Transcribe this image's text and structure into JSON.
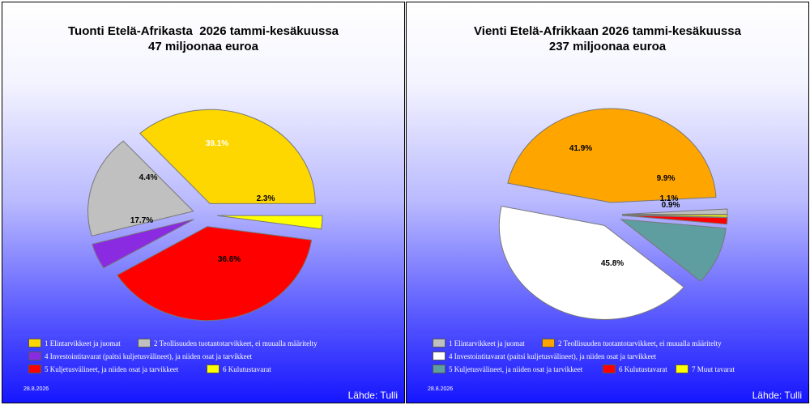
{
  "chart_data": [
    {
      "type": "pie",
      "title_lines": [
        "Tuonti Etelä-Afrikasta  2026 tammi-kesäkuussa",
        "47 miljoonaa euroa"
      ],
      "date": "28.8.2026",
      "source": "Lähde: Tulli",
      "slices": [
        {
          "name": "1 Elintarvikkeet ja juomat",
          "value": 36.6,
          "label": "36.6%",
          "color": "#ffd700"
        },
        {
          "name": "2 Teollisuuden tuotantotarvikkeet, ei muualla määritelty",
          "value": 17.7,
          "label": "17.7%",
          "color": "#c0c0c0"
        },
        {
          "name": "4 Investointitavarat (paitsi kuljetusvälineet), ja niiden osat ja tarvikkeet",
          "value": 4.4,
          "label": "4.4%",
          "color": "#8a2be2"
        },
        {
          "name": "5 Kuljetusvälineet, ja niiden osat ja tarvikkeet",
          "value": 39.1,
          "label": "39.1%",
          "color": "#ff0000"
        },
        {
          "name": "6 Kulutustavarat",
          "value": 2.3,
          "label": "2.3%",
          "color": "#ffff00"
        }
      ],
      "legend_rows": [
        [
          0,
          1
        ],
        [
          2
        ],
        [
          3,
          4
        ]
      ]
    },
    {
      "type": "pie",
      "title_lines": [
        "Vienti Etelä-Afrikkaan 2026 tammi-kesäkuussa",
        "237 miljoonaa euroa"
      ],
      "date": "28.8.2026",
      "source": "Lähde: Tulli",
      "slices": [
        {
          "name": "1 Elintarvikkeet ja juomat",
          "value": 0.9,
          "label": "0.9%",
          "color": "#c0c0c0"
        },
        {
          "name": "2 Teollisuuden tuotantotarvikkeet, ei muualla määritelty",
          "value": 45.8,
          "label": "45.8%",
          "color": "#ffa500"
        },
        {
          "name": "4 Investointitavarat (paitsi kuljetusvälineet), ja niiden osat ja tarvikkeet",
          "value": 41.9,
          "label": "41.9%",
          "color": "#ffffff"
        },
        {
          "name": "5 Kuljetusvälineet, ja niiden osat ja tarvikkeet",
          "value": 9.9,
          "label": "9.9%",
          "color": "#5f9ea0"
        },
        {
          "name": "6 Kulutustavarat",
          "value": 1.1,
          "label": "1.1%",
          "color": "#ff0000"
        },
        {
          "name": "7 Muut tavarat",
          "value": 0.4,
          "label": "",
          "color": "#ffff00"
        }
      ],
      "legend_rows": [
        [
          0,
          1
        ],
        [
          2
        ],
        [
          3,
          4,
          5
        ]
      ]
    }
  ]
}
